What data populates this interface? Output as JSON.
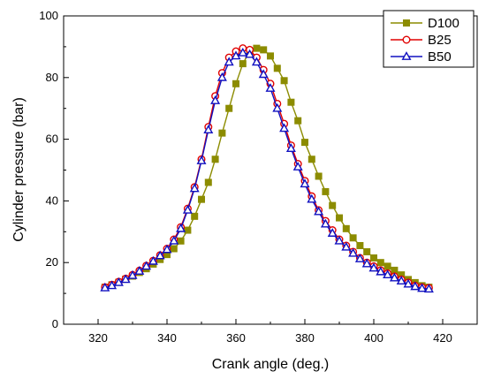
{
  "chart_data": {
    "type": "line",
    "title": "",
    "xlabel": "Crank angle (deg.)",
    "ylabel": "Cylinder pressure (bar)",
    "xlim": [
      310,
      430
    ],
    "ylim": [
      0,
      100
    ],
    "xticks": [
      "320",
      "340",
      "360",
      "380",
      "400",
      "420"
    ],
    "yticks": [
      "0",
      "20",
      "40",
      "60",
      "80",
      "100"
    ],
    "grid": false,
    "legend_position": "top-right",
    "series": [
      {
        "name": "D100",
        "color": "#8c8c00",
        "marker": "square",
        "x": [
          322,
          324,
          326,
          328,
          330,
          332,
          334,
          336,
          338,
          340,
          342,
          344,
          346,
          348,
          350,
          352,
          354,
          356,
          358,
          360,
          362,
          364,
          366,
          368,
          370,
          372,
          374,
          376,
          378,
          380,
          382,
          384,
          386,
          388,
          390,
          392,
          394,
          396,
          398,
          400,
          402,
          404,
          406,
          408,
          410,
          412,
          414,
          416
        ],
        "y": [
          12.0,
          12.8,
          13.6,
          14.6,
          15.6,
          16.8,
          18.0,
          19.5,
          21.0,
          22.6,
          24.5,
          27.0,
          30.5,
          35.0,
          40.5,
          46.0,
          53.5,
          62.0,
          70.0,
          78.0,
          84.5,
          88.5,
          89.5,
          89.0,
          87.0,
          83.0,
          79.0,
          72.0,
          66.0,
          59.0,
          53.5,
          48.0,
          43.0,
          38.5,
          34.5,
          31.0,
          28.0,
          25.5,
          23.5,
          21.5,
          20.0,
          18.8,
          17.5,
          16.0,
          14.5,
          13.5,
          12.5,
          12.0
        ]
      },
      {
        "name": "B25",
        "color": "#e00000",
        "marker": "circle",
        "x": [
          322,
          324,
          326,
          328,
          330,
          332,
          334,
          336,
          338,
          340,
          342,
          344,
          346,
          348,
          350,
          352,
          354,
          356,
          358,
          360,
          362,
          364,
          366,
          368,
          370,
          372,
          374,
          376,
          378,
          380,
          382,
          384,
          386,
          388,
          390,
          392,
          394,
          396,
          398,
          400,
          402,
          404,
          406,
          408,
          410,
          412,
          414,
          416
        ],
        "y": [
          12.0,
          12.8,
          13.8,
          14.8,
          16.0,
          17.4,
          19.0,
          20.6,
          22.4,
          24.5,
          27.5,
          31.5,
          37.5,
          44.5,
          53.5,
          64.0,
          74.0,
          81.5,
          86.5,
          88.5,
          89.5,
          89.0,
          86.5,
          82.5,
          78.0,
          71.5,
          65.0,
          58.0,
          52.0,
          46.5,
          41.5,
          37.0,
          33.5,
          30.5,
          27.5,
          25.5,
          23.5,
          21.5,
          20.0,
          18.8,
          17.5,
          16.5,
          15.5,
          14.5,
          13.5,
          12.5,
          12.0,
          11.8
        ]
      },
      {
        "name": "B50",
        "color": "#1010c0",
        "marker": "triangle",
        "x": [
          322,
          324,
          326,
          328,
          330,
          332,
          334,
          336,
          338,
          340,
          342,
          344,
          346,
          348,
          350,
          352,
          354,
          356,
          358,
          360,
          362,
          364,
          366,
          368,
          370,
          372,
          374,
          376,
          378,
          380,
          382,
          384,
          386,
          388,
          390,
          392,
          394,
          396,
          398,
          400,
          402,
          404,
          406,
          408,
          410,
          412,
          414,
          416
        ],
        "y": [
          11.8,
          12.5,
          13.5,
          14.5,
          15.8,
          17.2,
          18.8,
          20.4,
          22.2,
          24.2,
          27.0,
          31.0,
          37.0,
          44.0,
          53.0,
          63.0,
          72.5,
          80.0,
          85.0,
          87.0,
          88.0,
          87.5,
          85.0,
          81.0,
          76.5,
          70.0,
          63.5,
          57.0,
          51.0,
          45.5,
          40.5,
          36.5,
          32.5,
          29.5,
          27.0,
          25.0,
          23.0,
          21.2,
          19.6,
          18.2,
          17.0,
          16.0,
          15.0,
          14.0,
          13.0,
          12.2,
          11.6,
          11.4
        ]
      }
    ]
  }
}
